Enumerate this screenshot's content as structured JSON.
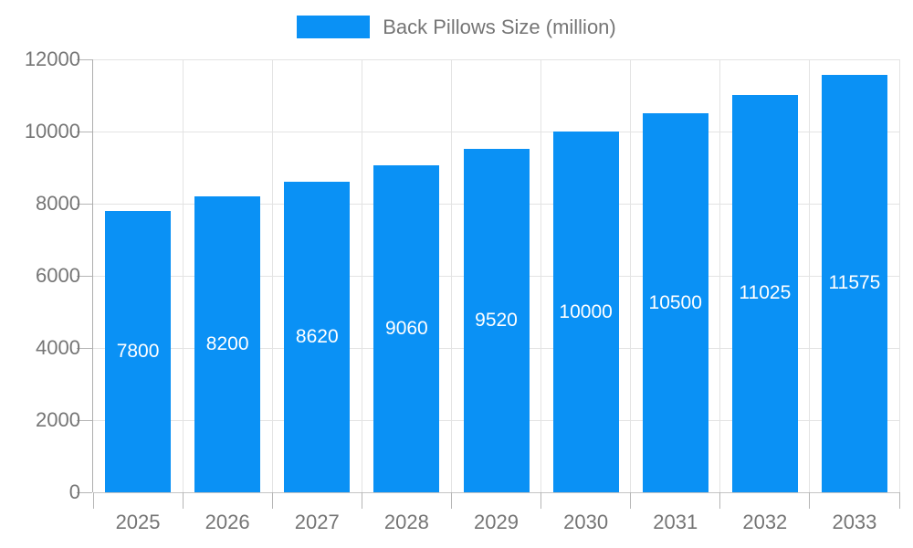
{
  "chart_data": {
    "type": "bar",
    "title": "Back Pillows Size (million)",
    "legend": {
      "label": "Back Pillows Size (million)",
      "position": "top"
    },
    "categories": [
      "2025",
      "2026",
      "2027",
      "2028",
      "2029",
      "2030",
      "2031",
      "2032",
      "2033"
    ],
    "values": [
      7800,
      8200,
      8620,
      9060,
      9520,
      10000,
      10500,
      11025,
      11575
    ],
    "bar_labels": [
      "7800",
      "8200",
      "8620",
      "9060",
      "9520",
      "10000",
      "10500",
      "11025",
      "11575"
    ],
    "xlabel": "",
    "ylabel": "",
    "ylim": [
      0,
      12000
    ],
    "ytick_interval": 2000,
    "ytick_labels": [
      "0",
      "2000",
      "4000",
      "6000",
      "8000",
      "10000",
      "12000"
    ],
    "grid": true,
    "colors": {
      "bar_fill": "#0a91f5",
      "bar_value_text": "#ffffff",
      "axis_text": "#757575",
      "grid_line": "#e3e3e3",
      "axis_line": "#adadad",
      "background": "#ffffff"
    }
  }
}
